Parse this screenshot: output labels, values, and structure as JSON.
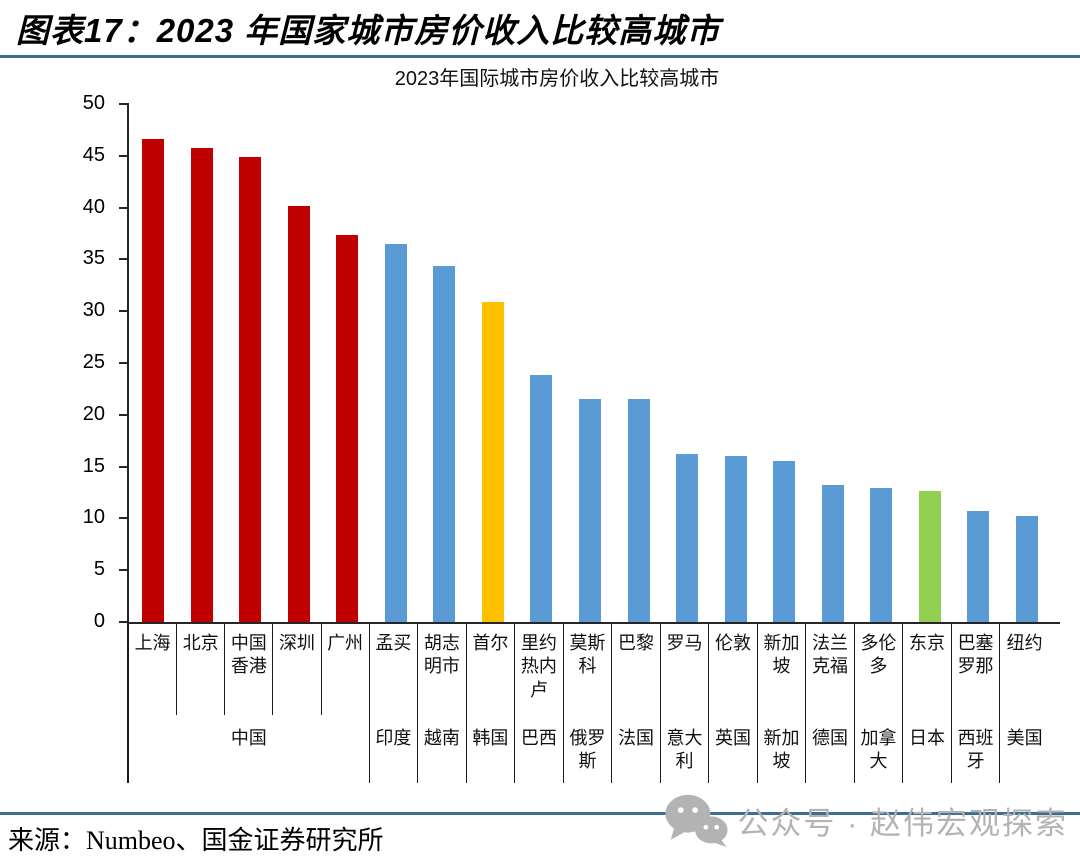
{
  "header": {
    "title": "图表17：2023 年国家城市房价收入比较高城市"
  },
  "chart_data": {
    "type": "bar",
    "title": "2023年国际城市房价收入比较高城市",
    "xlabel": "",
    "ylabel": "",
    "ylim": [
      0,
      50
    ],
    "ytick_step": 5,
    "grid": false,
    "legend": false,
    "categories": [
      "上海",
      "北京",
      "中国香港",
      "深圳",
      "广州",
      "孟买",
      "胡志明市",
      "首尔",
      "里约热内卢",
      "莫斯科",
      "巴黎",
      "罗马",
      "伦敦",
      "新加坡",
      "法兰克福",
      "多伦多",
      "东京",
      "巴塞罗那",
      "纽约"
    ],
    "values": [
      46.6,
      45.8,
      44.9,
      40.2,
      37.4,
      36.5,
      34.4,
      30.9,
      23.8,
      21.5,
      21.5,
      16.2,
      16.0,
      15.5,
      13.2,
      12.9,
      12.6,
      10.7,
      10.2
    ],
    "bars": [
      {
        "city": "上海",
        "country": "中国",
        "value": 46.6,
        "color": "#C00000"
      },
      {
        "city": "北京",
        "country": "中国",
        "value": 45.8,
        "color": "#C00000"
      },
      {
        "city": "中国香港",
        "country": "中国",
        "value": 44.9,
        "color": "#C00000"
      },
      {
        "city": "深圳",
        "country": "中国",
        "value": 40.2,
        "color": "#C00000"
      },
      {
        "city": "广州",
        "country": "中国",
        "value": 37.4,
        "color": "#C00000"
      },
      {
        "city": "孟买",
        "country": "印度",
        "value": 36.5,
        "color": "#5B9BD5"
      },
      {
        "city": "胡志明市",
        "country": "越南",
        "value": 34.4,
        "color": "#5B9BD5"
      },
      {
        "city": "首尔",
        "country": "韩国",
        "value": 30.9,
        "color": "#FFC000"
      },
      {
        "city": "里约热内卢",
        "country": "巴西",
        "value": 23.8,
        "color": "#5B9BD5"
      },
      {
        "city": "莫斯科",
        "country": "俄罗斯",
        "value": 21.5,
        "color": "#5B9BD5"
      },
      {
        "city": "巴黎",
        "country": "法国",
        "value": 21.5,
        "color": "#5B9BD5"
      },
      {
        "city": "罗马",
        "country": "意大利",
        "value": 16.2,
        "color": "#5B9BD5"
      },
      {
        "city": "伦敦",
        "country": "英国",
        "value": 16.0,
        "color": "#5B9BD5"
      },
      {
        "city": "新加坡",
        "country": "新加坡",
        "value": 15.5,
        "color": "#5B9BD5"
      },
      {
        "city": "法兰克福",
        "country": "德国",
        "value": 13.2,
        "color": "#5B9BD5"
      },
      {
        "city": "多伦多",
        "country": "加拿大",
        "value": 12.9,
        "color": "#5B9BD5"
      },
      {
        "city": "东京",
        "country": "日本",
        "value": 12.6,
        "color": "#92D050"
      },
      {
        "city": "巴塞罗那",
        "country": "西班牙",
        "value": 10.7,
        "color": "#5B9BD5"
      },
      {
        "city": "纽约",
        "country": "美国",
        "value": 10.2,
        "color": "#5B9BD5"
      }
    ],
    "bar_colors": {
      "china_red": "#C00000",
      "default_blue": "#5B9BD5",
      "seoul_yellow": "#FFC000",
      "tokyo_green": "#92D050"
    }
  },
  "footer": {
    "source": "来源：Numbeo、国金证券研究所",
    "watermark": "公众号 · 赵伟宏观探索",
    "wechat_icon": "wechat-logo"
  },
  "accent_colors": {
    "rule_blue": "#3C6E91",
    "axis_black": "#262626",
    "watermark_gray": "#B3B3B3"
  }
}
